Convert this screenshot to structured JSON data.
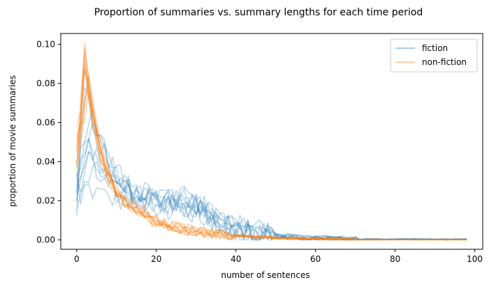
{
  "chart_data": {
    "type": "line",
    "title": "Proportion of summaries vs. summary lengths for each time period",
    "xlabel": "number of sentences",
    "ylabel": "proportion of movie summaries",
    "xlim": [
      -4,
      102
    ],
    "ylim": [
      -0.0048,
      0.1055
    ],
    "x_ticks": [
      0,
      20,
      40,
      60,
      80,
      100
    ],
    "y_ticks": [
      0.0,
      0.02,
      0.04,
      0.06,
      0.08,
      0.1
    ],
    "x_tick_labels": [
      "0",
      "20",
      "40",
      "60",
      "80",
      "100"
    ],
    "y_tick_labels": [
      "0.00",
      "0.02",
      "0.04",
      "0.06",
      "0.08",
      "0.10"
    ],
    "grid": false,
    "legend_position": "top-right",
    "legend": [
      {
        "name": "fiction",
        "color": "#1f77b4"
      },
      {
        "name": "non-fiction",
        "color": "#ff7f0e"
      }
    ],
    "series_groups": [
      {
        "name": "fiction",
        "color": "#1f77b4",
        "x_start": 0,
        "x_end": 98,
        "opacity": 0.3,
        "peak_values": [
          0.028,
          0.045,
          0.06,
          0.078,
          0.045,
          0.052,
          0.067,
          0.05,
          0.087,
          0.04
        ],
        "peak_at": [
          2,
          3,
          4,
          2,
          3,
          3,
          4,
          2,
          2,
          5
        ],
        "plateau_values": [
          0.018,
          0.015,
          0.02,
          0.016,
          0.019,
          0.017,
          0.014,
          0.021,
          0.016,
          0.018
        ]
      },
      {
        "name": "non-fiction",
        "color": "#ff7f0e",
        "x_start": 0,
        "x_end": 98,
        "opacity": 0.35,
        "peak_values": [
          0.101,
          0.096,
          0.09,
          0.085,
          0.079,
          0.088,
          0.093,
          0.083,
          0.098,
          0.076
        ],
        "peak_at": [
          2,
          2,
          2,
          3,
          3,
          2,
          2,
          3,
          2,
          3
        ],
        "plateau_values": [
          0.01,
          0.011,
          0.009,
          0.012,
          0.01,
          0.011,
          0.01,
          0.009,
          0.012,
          0.01
        ]
      }
    ]
  }
}
